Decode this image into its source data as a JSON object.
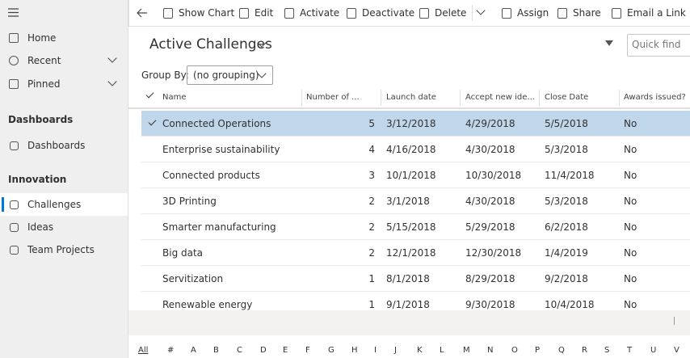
{
  "nav": {
    "top_items": [
      "Home",
      "Recent",
      "Pinned"
    ],
    "sections": [
      {
        "title": "Dashboards",
        "items": [
          "Dashboards"
        ]
      },
      {
        "title": "Innovation",
        "items": [
          "Challenges",
          "Ideas",
          "Team Projects"
        ]
      }
    ]
  },
  "commands": [
    "Show Chart",
    "Edit",
    "Activate",
    "Deactivate",
    "Delete",
    "Assign",
    "Share",
    "Email a Link"
  ],
  "view": {
    "title": "Active Challenges",
    "search_placeholder": "Quick find",
    "group_by_label": "Group By:",
    "group_by_value": "(no grouping)"
  },
  "table": {
    "columns": [
      "Name",
      "Number of ...",
      "Launch date",
      "Accept new ide...",
      "Close Date",
      "Awards issued?"
    ],
    "rows": [
      [
        "Connected Operations",
        "5",
        "3/12/2018",
        "4/29/2018",
        "5/5/2018",
        "No"
      ],
      [
        "Enterprise sustainability",
        "4",
        "4/16/2018",
        "4/30/2018",
        "5/3/2018",
        "No"
      ],
      [
        "Connected products",
        "3",
        "10/1/2018",
        "10/30/2018",
        "11/4/2018",
        "No"
      ],
      [
        "3D Printing",
        "2",
        "3/1/2018",
        "4/30/2018",
        "5/3/2018",
        "No"
      ],
      [
        "Smarter manufacturing",
        "2",
        "5/15/2018",
        "5/29/2018",
        "6/2/2018",
        "No"
      ],
      [
        "Big data",
        "2",
        "12/1/2018",
        "12/30/2018",
        "1/4/2019",
        "No"
      ],
      [
        "Servitization",
        "1",
        "8/1/2018",
        "8/29/2018",
        "9/2/2018",
        "No"
      ],
      [
        "Renewable energy",
        "1",
        "9/1/2018",
        "9/30/2018",
        "10/4/2018",
        "No"
      ]
    ]
  },
  "alphabet": [
    "All",
    "#",
    "A",
    "B",
    "C",
    "D",
    "E",
    "F",
    "G",
    "H",
    "I",
    "J",
    "K",
    "L",
    "M",
    "N",
    "O",
    "P",
    "Q",
    "R",
    "S",
    "T",
    "U",
    "V"
  ]
}
